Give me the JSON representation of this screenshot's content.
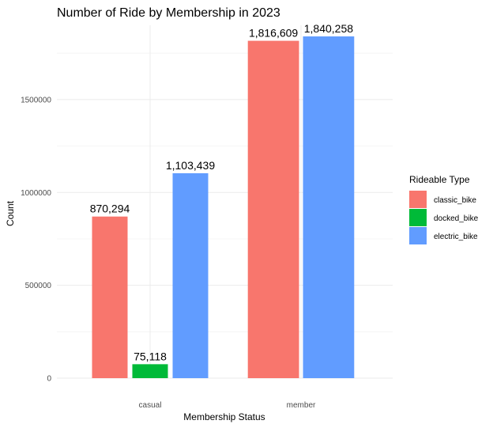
{
  "chart_data": {
    "type": "bar",
    "title": "Number of Ride by Membership in 2023",
    "xlabel": "Membership Status",
    "ylabel": "Count",
    "categories": [
      "casual",
      "member"
    ],
    "series": [
      {
        "name": "classic_bike",
        "color": "#F8766D",
        "values": [
          870294,
          1816609
        ],
        "labels": [
          "870,294",
          "1,816,609"
        ]
      },
      {
        "name": "docked_bike",
        "color": "#00BA38",
        "values": [
          75118,
          null
        ],
        "labels": [
          "75,118",
          null
        ]
      },
      {
        "name": "electric_bike",
        "color": "#619CFF",
        "values": [
          1103439,
          1840258
        ],
        "labels": [
          "1,103,439",
          "1,840,258"
        ]
      }
    ],
    "y_ticks": [
      0,
      500000,
      1000000,
      1500000
    ],
    "y_tick_labels": [
      "0",
      "500000",
      "1000000",
      "1500000"
    ],
    "ylim": [
      0,
      1900000
    ],
    "grid": true,
    "legend": {
      "title": "Rideable Type",
      "position": "right"
    }
  }
}
